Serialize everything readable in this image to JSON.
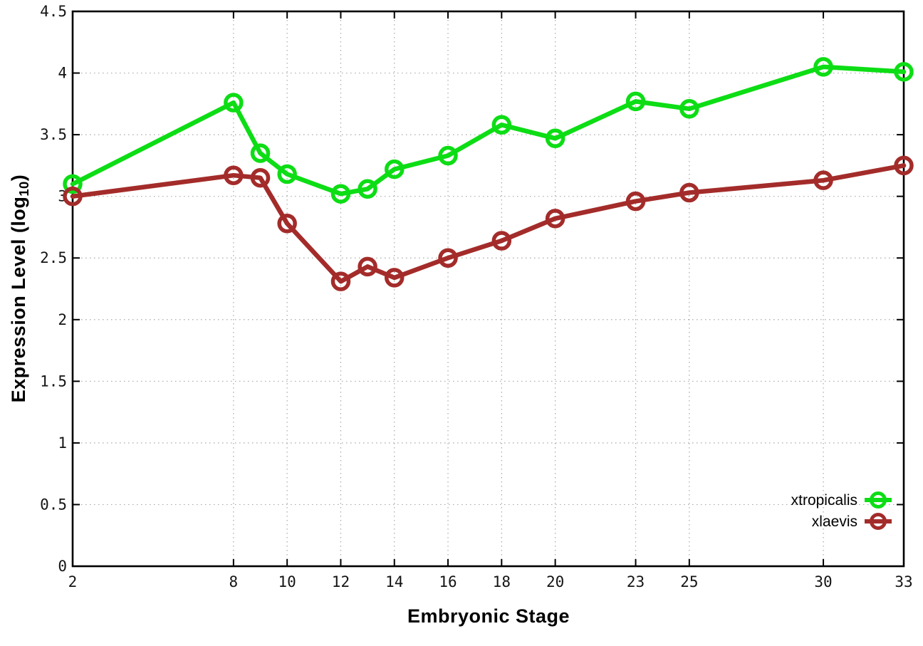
{
  "chart_data": {
    "type": "line",
    "title": "",
    "xlabel": "Embryonic Stage",
    "ylabel": {
      "prefix": "Expression Level (log",
      "subscript": "10",
      "suffix": ")"
    },
    "xlim": [
      2,
      33
    ],
    "ylim": [
      0,
      4.5
    ],
    "grid": true,
    "grid_style": "dotted",
    "legend_position": "bottom-right-inside",
    "background_color": "#ffffff",
    "axis_color": "#000000",
    "grid_color": "#a8a8a8",
    "x_ticks": {
      "values": [
        2,
        8,
        10,
        12,
        14,
        16,
        18,
        20,
        23,
        25,
        30,
        33
      ],
      "labels": [
        "2",
        "8",
        "10",
        "12",
        "14",
        "16",
        "18",
        "20",
        "23",
        "25",
        "30",
        "33"
      ]
    },
    "y_ticks": {
      "values": [
        0,
        0.5,
        1,
        1.5,
        2,
        2.5,
        3,
        3.5,
        4,
        4.5
      ],
      "labels": [
        "0",
        "0.5",
        "1",
        "1.5",
        "2",
        "2.5",
        "3",
        "3.5",
        "4",
        "4.5"
      ]
    },
    "series": [
      {
        "name": "xtropicalis",
        "color": "#0ddd15",
        "marker": "open-circle",
        "x": [
          2,
          8,
          9,
          10,
          12,
          13,
          14,
          16,
          18,
          20,
          23,
          25,
          30,
          33
        ],
        "y": [
          3.1,
          3.76,
          3.35,
          3.18,
          3.02,
          3.06,
          3.22,
          3.33,
          3.58,
          3.47,
          3.77,
          3.71,
          4.05,
          4.01
        ]
      },
      {
        "name": "xlaevis",
        "color": "#a32c2a",
        "marker": "open-circle",
        "x": [
          2,
          8,
          9,
          10,
          12,
          13,
          14,
          16,
          18,
          20,
          23,
          25,
          30,
          33
        ],
        "y": [
          3.0,
          3.17,
          3.15,
          2.78,
          2.31,
          2.43,
          2.34,
          2.5,
          2.64,
          2.82,
          2.96,
          3.03,
          3.13,
          3.25
        ]
      }
    ]
  }
}
